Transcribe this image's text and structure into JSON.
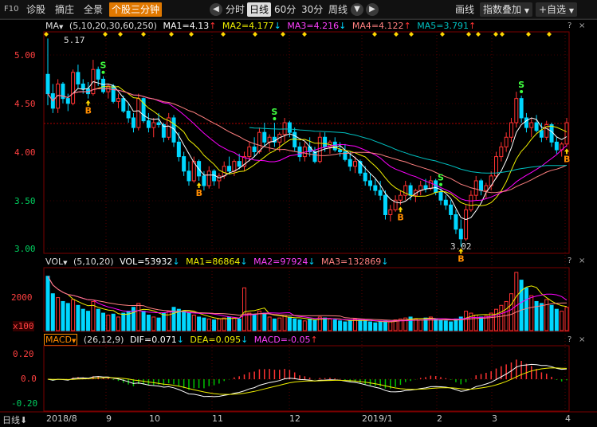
{
  "toolbar": {
    "code": "F10",
    "items": [
      "诊股",
      "摘庄",
      "全景"
    ],
    "active": "个股三分钟",
    "periods": [
      "分时",
      "日线",
      "60分",
      "30分",
      "周线"
    ],
    "active_period": "日线",
    "draw_label": "画线",
    "overlay_label": "指数叠加",
    "add_label": "+",
    "watch_label": "+自选",
    "plus_icon": "+",
    "dropdown_icon": "▼",
    "prev_icon": "◀",
    "next_icon": "▶"
  },
  "colors": {
    "up": "#ff3232",
    "down": "#00d7ff",
    "ma1": "#ffffff",
    "ma2": "#f0f000",
    "ma3": "#ff00ff",
    "ma4": "#ff8080",
    "ma5": "#00c0c0",
    "grid": "#7a0000",
    "axis_price": "#ff4040"
  },
  "ma_legend": {
    "name": "MA",
    "params": "(5,10,20,30,60,250)",
    "ma1": "MA1=4.13",
    "ma2": "MA2=4.177",
    "ma3": "MA3=4.216",
    "ma4": "MA4=4.122",
    "ma5": "MA5=3.791",
    "up_arrow": "↑",
    "down_arrow": "↓"
  },
  "price_axis": [
    "5.00",
    "4.50",
    "4.00",
    "3.50",
    "3.00"
  ],
  "price_high_label": "5.17",
  "price_low_label": "3.02",
  "signals": {
    "buy": "B",
    "sell": "S"
  },
  "vol_legend": {
    "name": "VOL",
    "params": "(5,10,20)",
    "vol": "VOL=53932",
    "ma1": "MA1=86864",
    "ma2": "MA2=97924",
    "ma3": "MA3=132869"
  },
  "vol_axis": [
    "2000",
    "x100"
  ],
  "macd_legend": {
    "name": "MACD",
    "params": "(26,12,9)",
    "dif": "DIF=0.071",
    "dea": "DEA=0.095",
    "macd": "MACD=-0.05"
  },
  "macd_axis": [
    "0.20",
    "0.0",
    "-0.20"
  ],
  "panel_icons": [
    "?",
    "×"
  ],
  "bottom": {
    "period_label": "日线",
    "down_icon": "⬇",
    "dates": [
      "2018/8",
      "9",
      "10",
      "11",
      "12",
      "2019/1",
      "2",
      "3",
      "4"
    ]
  },
  "chart_data": {
    "type": "candlestick",
    "ylim": [
      2.9,
      5.3
    ],
    "ohlc": [
      [
        4.8,
        5.17,
        4.48,
        4.6
      ],
      [
        4.6,
        4.7,
        4.4,
        4.45
      ],
      [
        4.45,
        4.75,
        4.4,
        4.7
      ],
      [
        4.7,
        4.72,
        4.5,
        4.55
      ],
      [
        4.55,
        4.6,
        4.42,
        4.5
      ],
      [
        4.5,
        4.85,
        4.48,
        4.82
      ],
      [
        4.82,
        4.9,
        4.65,
        4.7
      ],
      [
        4.7,
        4.75,
        4.6,
        4.65
      ],
      [
        4.65,
        4.72,
        4.55,
        4.6
      ],
      [
        4.6,
        4.95,
        4.58,
        4.85
      ],
      [
        4.85,
        4.88,
        4.68,
        4.75
      ],
      [
        4.75,
        4.78,
        4.6,
        4.62
      ],
      [
        4.62,
        4.7,
        4.55,
        4.68
      ],
      [
        4.68,
        4.7,
        4.5,
        4.52
      ],
      [
        4.52,
        4.6,
        4.45,
        4.55
      ],
      [
        4.55,
        4.58,
        4.4,
        4.42
      ],
      [
        4.42,
        4.5,
        4.3,
        4.35
      ],
      [
        4.35,
        4.4,
        4.2,
        4.25
      ],
      [
        4.25,
        4.6,
        4.22,
        4.55
      ],
      [
        4.55,
        4.56,
        4.3,
        4.32
      ],
      [
        4.32,
        4.4,
        4.2,
        4.25
      ],
      [
        4.25,
        4.35,
        4.15,
        4.3
      ],
      [
        4.3,
        4.4,
        4.25,
        4.28
      ],
      [
        4.28,
        4.3,
        4.1,
        4.15
      ],
      [
        4.15,
        4.4,
        4.12,
        4.35
      ],
      [
        4.35,
        4.38,
        4.05,
        4.1
      ],
      [
        4.1,
        4.2,
        3.9,
        3.95
      ],
      [
        3.95,
        4.0,
        3.75,
        3.8
      ],
      [
        3.8,
        3.9,
        3.65,
        3.7
      ],
      [
        3.7,
        3.95,
        3.68,
        3.9
      ],
      [
        3.9,
        3.92,
        3.7,
        3.75
      ],
      [
        3.75,
        3.8,
        3.6,
        3.65
      ],
      [
        3.65,
        3.85,
        3.62,
        3.8
      ],
      [
        3.8,
        3.82,
        3.65,
        3.7
      ],
      [
        3.7,
        3.78,
        3.62,
        3.75
      ],
      [
        3.75,
        3.9,
        3.72,
        3.85
      ],
      [
        3.85,
        3.95,
        3.78,
        3.8
      ],
      [
        3.8,
        3.92,
        3.75,
        3.9
      ],
      [
        3.9,
        3.98,
        3.82,
        3.85
      ],
      [
        3.85,
        4.0,
        3.8,
        3.95
      ],
      [
        3.95,
        4.1,
        3.9,
        4.05
      ],
      [
        4.05,
        4.15,
        3.95,
        4.0
      ],
      [
        4.0,
        4.25,
        3.98,
        4.2
      ],
      [
        4.2,
        4.3,
        4.05,
        4.1
      ],
      [
        4.1,
        4.18,
        4.0,
        4.15
      ],
      [
        4.15,
        4.3,
        4.05,
        4.1
      ],
      [
        4.1,
        4.2,
        4.0,
        4.18
      ],
      [
        4.18,
        4.35,
        4.1,
        4.3
      ],
      [
        4.3,
        4.32,
        4.15,
        4.2
      ],
      [
        4.2,
        4.25,
        4.0,
        4.05
      ],
      [
        4.05,
        4.1,
        3.9,
        3.95
      ],
      [
        3.95,
        4.1,
        3.9,
        4.05
      ],
      [
        4.05,
        4.15,
        3.95,
        4.0
      ],
      [
        4.0,
        4.05,
        3.88,
        3.9
      ],
      [
        3.9,
        4.2,
        3.88,
        4.15
      ],
      [
        4.15,
        4.2,
        4.0,
        4.05
      ],
      [
        4.05,
        4.12,
        3.98,
        4.1
      ],
      [
        4.1,
        4.15,
        4.0,
        4.02
      ],
      [
        4.02,
        4.1,
        3.95,
        4.0
      ],
      [
        4.0,
        4.08,
        3.9,
        3.92
      ],
      [
        3.92,
        4.0,
        3.8,
        3.85
      ],
      [
        3.85,
        3.95,
        3.78,
        3.9
      ],
      [
        3.9,
        3.92,
        3.75,
        3.78
      ],
      [
        3.78,
        3.85,
        3.65,
        3.7
      ],
      [
        3.7,
        3.78,
        3.6,
        3.65
      ],
      [
        3.65,
        3.72,
        3.55,
        3.6
      ],
      [
        3.6,
        3.7,
        3.5,
        3.55
      ],
      [
        3.55,
        3.6,
        3.3,
        3.35
      ],
      [
        3.35,
        3.45,
        3.28,
        3.4
      ],
      [
        3.4,
        3.55,
        3.38,
        3.5
      ],
      [
        3.5,
        3.6,
        3.45,
        3.55
      ],
      [
        3.55,
        3.7,
        3.5,
        3.65
      ],
      [
        3.65,
        3.68,
        3.5,
        3.55
      ],
      [
        3.55,
        3.62,
        3.48,
        3.6
      ],
      [
        3.6,
        3.7,
        3.55,
        3.65
      ],
      [
        3.65,
        3.72,
        3.58,
        3.62
      ],
      [
        3.62,
        3.75,
        3.6,
        3.7
      ],
      [
        3.7,
        3.72,
        3.55,
        3.58
      ],
      [
        3.58,
        3.62,
        3.45,
        3.5
      ],
      [
        3.5,
        3.55,
        3.4,
        3.45
      ],
      [
        3.45,
        3.5,
        3.3,
        3.35
      ],
      [
        3.35,
        3.4,
        3.15,
        3.2
      ],
      [
        3.2,
        3.3,
        3.02,
        3.1
      ],
      [
        3.1,
        3.45,
        3.08,
        3.4
      ],
      [
        3.4,
        3.6,
        3.38,
        3.55
      ],
      [
        3.55,
        3.75,
        3.5,
        3.7
      ],
      [
        3.7,
        3.72,
        3.55,
        3.6
      ],
      [
        3.6,
        3.68,
        3.52,
        3.65
      ],
      [
        3.65,
        3.8,
        3.6,
        3.75
      ],
      [
        3.75,
        4.0,
        3.72,
        3.95
      ],
      [
        3.95,
        4.1,
        3.9,
        4.05
      ],
      [
        4.05,
        4.2,
        4.0,
        4.15
      ],
      [
        4.15,
        4.35,
        4.1,
        4.3
      ],
      [
        4.3,
        4.62,
        4.25,
        4.55
      ],
      [
        4.55,
        4.58,
        4.3,
        4.35
      ],
      [
        4.35,
        4.4,
        4.2,
        4.25
      ],
      [
        4.25,
        4.35,
        4.15,
        4.3
      ],
      [
        4.3,
        4.38,
        4.2,
        4.22
      ],
      [
        4.22,
        4.3,
        4.1,
        4.15
      ],
      [
        4.15,
        4.32,
        4.12,
        4.28
      ],
      [
        4.28,
        4.3,
        4.05,
        4.1
      ],
      [
        4.1,
        4.15,
        3.98,
        4.02
      ],
      [
        4.02,
        4.1,
        3.95,
        4.08
      ],
      [
        4.08,
        4.35,
        4.05,
        4.3
      ]
    ],
    "volume": [
      2800,
      1900,
      1700,
      1500,
      1400,
      1600,
      1300,
      1100,
      1000,
      1500,
      1100,
      900,
      800,
      850,
      700,
      900,
      1000,
      1200,
      1400,
      1000,
      800,
      700,
      650,
      900,
      1000,
      1200,
      1100,
      1000,
      900,
      800,
      700,
      650,
      600,
      550,
      600,
      650,
      700,
      650,
      600,
      2200,
      900,
      800,
      1000,
      900,
      700,
      600,
      650,
      800,
      700,
      600,
      550,
      500,
      600,
      550,
      700,
      650,
      600,
      550,
      500,
      450,
      500,
      600,
      550,
      500,
      450,
      400,
      450,
      500,
      450,
      550,
      600,
      650,
      700,
      600,
      550,
      650,
      700,
      600,
      550,
      500,
      450,
      600,
      700,
      1000,
      900,
      800,
      700,
      750,
      900,
      1100,
      1300,
      1500,
      1900,
      3000,
      2600,
      2200,
      1800,
      1500,
      1400,
      1600,
      1300,
      1100,
      1000,
      1200
    ],
    "ma_series": [
      "MA1",
      "MA2",
      "MA3",
      "MA4",
      "MA5"
    ],
    "macd_ylim": [
      -0.3,
      0.3
    ]
  }
}
